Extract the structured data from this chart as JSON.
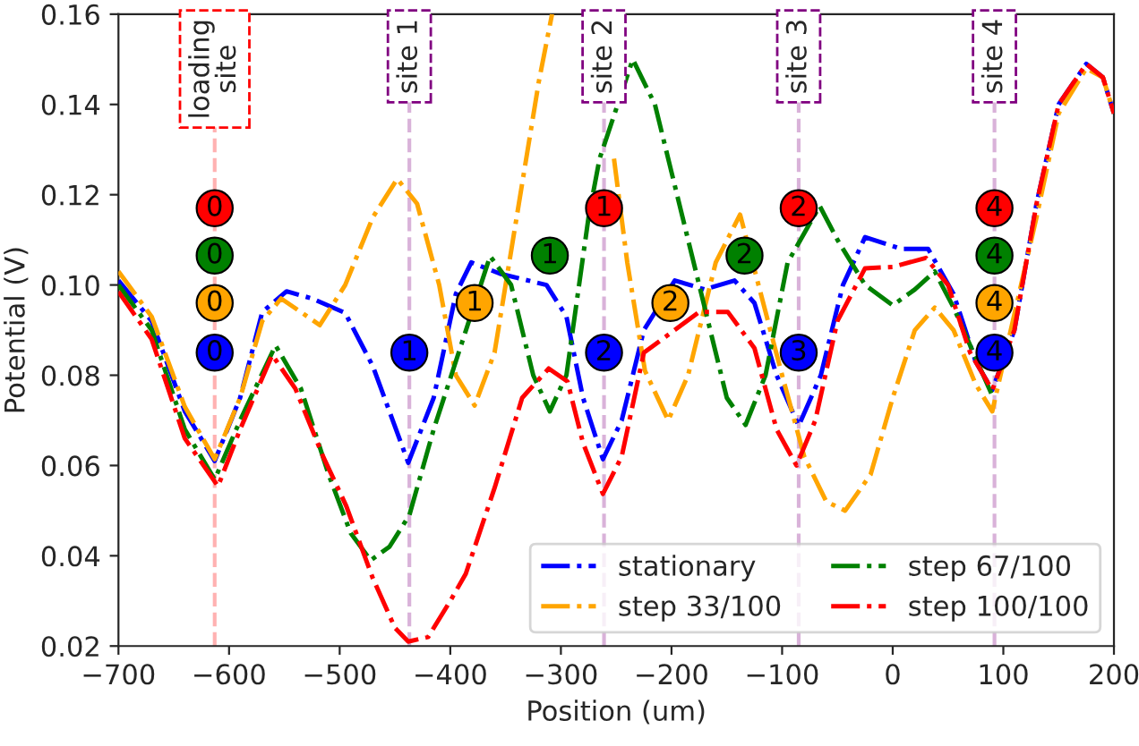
{
  "chart_data": {
    "type": "line",
    "xlabel": "Position (um)",
    "ylabel": "Potential (V)",
    "xlim": [
      -700,
      200
    ],
    "xticks": [
      {
        "value": -700,
        "label": "−700"
      },
      {
        "value": -600,
        "label": "−600"
      },
      {
        "value": -500,
        "label": "−500"
      },
      {
        "value": -400,
        "label": "−400"
      },
      {
        "value": -300,
        "label": "−300"
      },
      {
        "value": -200,
        "label": "−200"
      },
      {
        "value": -100,
        "label": "−100"
      },
      0,
      100,
      200
    ],
    "ylim": [
      0.02,
      0.16
    ],
    "yticks": [
      {
        "value": 0.02,
        "label": "0.02"
      },
      {
        "value": 0.04,
        "label": "0.04"
      },
      {
        "value": 0.06,
        "label": "0.06"
      },
      {
        "value": 0.08,
        "label": "0.08"
      },
      {
        "value": 0.1,
        "label": "0.10"
      },
      {
        "value": 0.12,
        "label": "0.12"
      },
      {
        "value": 0.14,
        "label": "0.14"
      },
      {
        "value": 0.16,
        "label": "0.16"
      }
    ],
    "grid": false,
    "legend": "bottom right",
    "line_style": "dashdot",
    "series": [
      {
        "name": "stationary",
        "color": "#0000ff",
        "x": [
          -700,
          -670,
          -640,
          -613,
          -590,
          -570,
          -548,
          -525,
          -495,
          -470,
          -438,
          -415,
          -395,
          -381,
          -355,
          -313,
          -295,
          -280,
          -262,
          -245,
          -225,
          -197,
          -170,
          -143,
          -125,
          -105,
          -85,
          -65,
          -45,
          -25,
          8,
          32,
          55,
          75,
          90,
          110,
          130,
          150,
          175,
          190,
          200
        ],
        "values": [
          0.101,
          0.092,
          0.072,
          0.061,
          0.075,
          0.094,
          0.0986,
          0.097,
          0.0938,
          0.082,
          0.0606,
          0.075,
          0.098,
          0.105,
          0.1025,
          0.1,
          0.093,
          0.075,
          0.0614,
          0.07,
          0.09,
          0.101,
          0.099,
          0.101,
          0.096,
          0.08,
          0.0688,
          0.08,
          0.1,
          0.1106,
          0.108,
          0.108,
          0.098,
          0.083,
          0.0767,
          0.09,
          0.118,
          0.14,
          0.149,
          0.146,
          0.138
        ]
      },
      {
        "name": "step 33/100",
        "color": "#ffa500",
        "x": [
          -700,
          -670,
          -640,
          -613,
          -590,
          -570,
          -553,
          -535,
          -518,
          -495,
          -470,
          -448,
          -430,
          -410,
          -395,
          -378,
          -360,
          -340,
          -320,
          -308,
          -290,
          -252,
          -240,
          -224,
          -203,
          -185,
          -160,
          -138,
          -100,
          -80,
          -60,
          -43,
          -20,
          0,
          20,
          38,
          55,
          75,
          90,
          130,
          150,
          175,
          190,
          200
        ],
        "values": [
          0.103,
          0.093,
          0.073,
          0.0614,
          0.075,
          0.092,
          0.097,
          0.094,
          0.0911,
          0.1,
          0.115,
          0.1235,
          0.118,
          0.1,
          0.08,
          0.0733,
          0.085,
          0.115,
          0.145,
          0.16,
          null,
          0.128,
          0.105,
          0.081,
          0.07,
          0.08,
          0.105,
          0.1156,
          0.08,
          0.062,
          0.052,
          0.05,
          0.058,
          0.075,
          0.09,
          0.095,
          0.09,
          0.078,
          0.072,
          0.115,
          0.138,
          0.148,
          0.146,
          0.138
        ]
      },
      {
        "name": "step 67/100",
        "color": "#008000",
        "x": [
          -700,
          -670,
          -640,
          -613,
          -590,
          -558,
          -535,
          -510,
          -490,
          -472,
          -455,
          -437,
          -415,
          -364,
          -345,
          -325,
          -310,
          -295,
          -275,
          -265,
          -235,
          -215,
          -190,
          -165,
          -150,
          -133,
          -115,
          -95,
          -66,
          -50,
          -25,
          0,
          20,
          38,
          55,
          90
        ],
        "values": [
          0.1,
          0.09,
          0.068,
          0.0569,
          0.07,
          0.0866,
          0.077,
          0.058,
          0.045,
          0.039,
          0.042,
          0.049,
          0.068,
          0.1064,
          0.1,
          0.08,
          0.072,
          0.08,
          0.115,
          0.128,
          0.15,
          0.14,
          0.115,
          0.09,
          0.075,
          0.069,
          0.08,
          0.105,
          0.1175,
          0.11,
          0.1,
          0.0955,
          0.099,
          0.103,
          0.095,
          0.0755
        ]
      },
      {
        "name": "step 100/100",
        "color": "#ff0000",
        "x": [
          -700,
          -670,
          -640,
          -610,
          -590,
          -561,
          -540,
          -515,
          -494,
          -470,
          -450,
          -438,
          -420,
          -400,
          -386,
          -360,
          -335,
          -311,
          -294,
          -280,
          -262,
          -245,
          -225,
          -175,
          -149,
          -125,
          -105,
          -87,
          -70,
          -50,
          -25,
          0,
          30,
          50,
          70,
          90,
          110,
          130,
          150,
          175,
          190,
          200
        ],
        "values": [
          0.0985,
          0.088,
          0.066,
          0.0554,
          0.068,
          0.0845,
          0.077,
          0.062,
          0.051,
          0.035,
          0.024,
          0.021,
          0.022,
          0.03,
          0.036,
          0.055,
          0.075,
          0.0815,
          0.0786,
          0.065,
          0.0537,
          0.062,
          0.085,
          0.094,
          0.094,
          0.086,
          0.068,
          0.06,
          0.07,
          0.092,
          0.1037,
          0.104,
          0.106,
          0.1,
          0.085,
          0.0767,
          0.09,
          0.118,
          0.14,
          0.149,
          0.146,
          0.138
        ]
      },
      {
        "type": "scatter",
        "marker": "circle",
        "color": "#ff0000",
        "x": [
          -613,
          -261,
          -85,
          92
        ],
        "values": [
          0.117,
          0.117,
          0.117,
          0.117
        ]
      },
      {
        "type": "scatter",
        "marker": "circle",
        "color": "#008000",
        "x": [
          -613,
          -310,
          -134,
          92
        ],
        "values": [
          0.1065,
          0.1065,
          0.1065,
          0.1065
        ]
      },
      {
        "type": "scatter",
        "marker": "circle",
        "color": "#ffa500",
        "x": [
          -613,
          -378,
          -201,
          92
        ],
        "values": [
          0.096,
          0.096,
          0.096,
          0.096
        ]
      },
      {
        "type": "scatter",
        "marker": "circle",
        "color": "#0000ff",
        "x": [
          -613,
          -437,
          -261,
          -85,
          92
        ],
        "values": [
          0.085,
          0.085,
          0.085,
          0.085,
          0.085
        ]
      }
    ],
    "annotations": [
      {
        "text": "0",
        "x": -613,
        "y": 0.117
      },
      {
        "text": "1",
        "x": -261,
        "y": 0.117
      },
      {
        "text": "2",
        "x": -85,
        "y": 0.117
      },
      {
        "text": "4",
        "x": 92,
        "y": 0.117
      },
      {
        "text": "0",
        "x": -613,
        "y": 0.1065
      },
      {
        "text": "1",
        "x": -310,
        "y": 0.1065
      },
      {
        "text": "2",
        "x": -134,
        "y": 0.1065
      },
      {
        "text": "4",
        "x": 92,
        "y": 0.1065
      },
      {
        "text": "0",
        "x": -613,
        "y": 0.096
      },
      {
        "text": "1",
        "x": -378,
        "y": 0.096
      },
      {
        "text": "2",
        "x": -201,
        "y": 0.096
      },
      {
        "text": "4",
        "x": 92,
        "y": 0.096
      },
      {
        "text": "0",
        "x": -613,
        "y": 0.085
      },
      {
        "text": "1",
        "x": -437,
        "y": 0.085
      },
      {
        "text": "2",
        "x": -261,
        "y": 0.085
      },
      {
        "text": "3",
        "x": -85,
        "y": 0.085
      },
      {
        "text": "4",
        "x": 92,
        "y": 0.085
      }
    ],
    "ref_lines": [
      {
        "axis": "x",
        "value": -613,
        "label": "loading\nsite",
        "color": "#ff0000",
        "line_style": "dashed"
      },
      {
        "axis": "x",
        "value": -437,
        "label": "site 1",
        "color": "#800080",
        "line_style": "dashed"
      },
      {
        "axis": "x",
        "value": -261,
        "label": "site 2",
        "color": "#800080",
        "line_style": "dashed"
      },
      {
        "axis": "x",
        "value": -85,
        "label": "site 3",
        "color": "#800080",
        "line_style": "dashed"
      },
      {
        "axis": "x",
        "value": 92,
        "label": "site 4",
        "color": "#800080",
        "line_style": "dashed"
      }
    ]
  }
}
